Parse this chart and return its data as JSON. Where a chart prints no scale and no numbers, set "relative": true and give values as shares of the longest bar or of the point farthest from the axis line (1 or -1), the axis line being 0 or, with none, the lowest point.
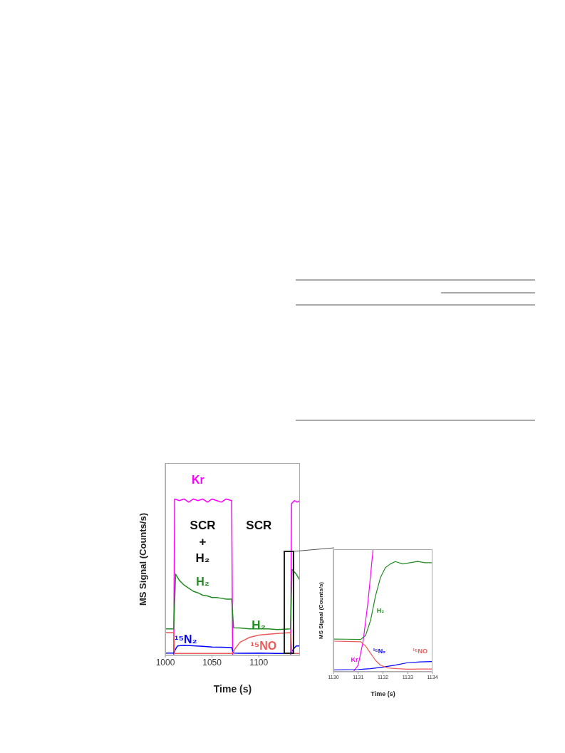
{
  "chart_data": [
    {
      "type": "line",
      "relative": true,
      "xlabel": "Time (s)",
      "ylabel": "MS Signal (Counts/s)",
      "xlim": [
        1000,
        1144
      ],
      "xticks": [
        1000,
        1050,
        1100
      ],
      "marker": "none",
      "series": [
        {
          "name": "Kr",
          "color": "#ff00ff",
          "x": [
            1000,
            1009,
            1010,
            1015,
            1020,
            1025,
            1030,
            1035,
            1040,
            1045,
            1050,
            1055,
            1060,
            1065,
            1071,
            1072,
            1080,
            1100,
            1120,
            1134,
            1135,
            1138,
            1141,
            1144
          ],
          "values": [
            0,
            0,
            1,
            0.99,
            1,
            0.98,
            1,
            0.99,
            1,
            0.98,
            1,
            0.99,
            0.98,
            1,
            0.99,
            0,
            0,
            0,
            0,
            0,
            0.97,
            0.99,
            0.98,
            0.99
          ]
        },
        {
          "name": "H₂",
          "color": "#228b22",
          "x": [
            1000,
            1009,
            1011,
            1015,
            1020,
            1025,
            1030,
            1035,
            1040,
            1045,
            1050,
            1055,
            1060,
            1065,
            1071,
            1073,
            1080,
            1090,
            1100,
            1110,
            1120,
            1134,
            1135.5,
            1140,
            1144
          ],
          "values": [
            0.17,
            0.17,
            0.52,
            0.48,
            0.45,
            0.43,
            0.41,
            0.4,
            0.385,
            0.38,
            0.37,
            0.37,
            0.365,
            0.36,
            0.36,
            0.177,
            0.175,
            0.17,
            0.17,
            0.17,
            0.165,
            0.17,
            0.55,
            0.52,
            0.48
          ]
        },
        {
          "name": "¹⁵N₂",
          "color": "#0000ff",
          "x": [
            1000,
            1009,
            1011,
            1013,
            1020,
            1030,
            1040,
            1050,
            1060,
            1071,
            1073,
            1080,
            1100,
            1120,
            1134,
            1137,
            1140,
            1144
          ],
          "values": [
            0.015,
            0.015,
            0.04,
            0.06,
            0.065,
            0.062,
            0.058,
            0.054,
            0.052,
            0.05,
            0.015,
            0.014,
            0.015,
            0.013,
            0.012,
            0.04,
            0.06,
            0.06
          ]
        },
        {
          "name": "¹⁵NO",
          "color": "#ec5a5a",
          "x": [
            1000,
            1009,
            1010,
            1040,
            1071,
            1072,
            1075,
            1080,
            1085,
            1090,
            1100,
            1110,
            1120,
            1134,
            1135.5,
            1144
          ],
          "values": [
            0.146,
            0.146,
            0.012,
            0.012,
            0.012,
            0.015,
            0.046,
            0.085,
            0.1,
            0.115,
            0.13,
            0.135,
            0.14,
            0.146,
            0.012,
            0.012
          ]
        }
      ],
      "annotations": [
        "SCR\n+\nH₂",
        "SCR",
        "H₂"
      ]
    },
    {
      "type": "line",
      "relative": true,
      "xlabel": "Time (s)",
      "ylabel": "MS Signal (Counts/s)",
      "xlim": [
        1130,
        1134
      ],
      "xticks": [
        1130,
        1131,
        1132,
        1133,
        1134
      ],
      "marker": "none",
      "series": [
        {
          "name": "Kr",
          "color": "#ff00ff",
          "x": [
            1130,
            1130.8,
            1131,
            1131.2,
            1131.4,
            1131.6
          ],
          "values": [
            0,
            0,
            0.054,
            0.25,
            0.58,
            1
          ]
        },
        {
          "name": "H₂",
          "color": "#228b22",
          "x": [
            1130,
            1130.5,
            1131.1,
            1131.3,
            1131.5,
            1131.7,
            1131.9,
            1132.1,
            1132.3,
            1132.5,
            1132.8,
            1133.1,
            1133.4,
            1133.7,
            1134
          ],
          "values": [
            0.267,
            0.266,
            0.264,
            0.297,
            0.42,
            0.62,
            0.77,
            0.85,
            0.88,
            0.9,
            0.88,
            0.89,
            0.9,
            0.89,
            0.89
          ]
        },
        {
          "name": "¹⁵N₂",
          "color": "#0000ff",
          "x": [
            1130,
            1131,
            1131.5,
            1132,
            1132.5,
            1133,
            1133.5,
            1134
          ],
          "values": [
            0.016,
            0.019,
            0.025,
            0.039,
            0.054,
            0.074,
            0.081,
            0.083
          ]
        },
        {
          "name": "¹⁵NO",
          "color": "#ec5a5a",
          "x": [
            1130,
            1130.5,
            1131.1,
            1131.3,
            1131.5,
            1131.7,
            1131.9,
            1132.2,
            1132.6,
            1133,
            1133.5,
            1134
          ],
          "values": [
            0.25,
            0.248,
            0.245,
            0.21,
            0.15,
            0.093,
            0.054,
            0.031,
            0.025,
            0.021,
            0.022,
            0.023
          ]
        }
      ]
    }
  ]
}
